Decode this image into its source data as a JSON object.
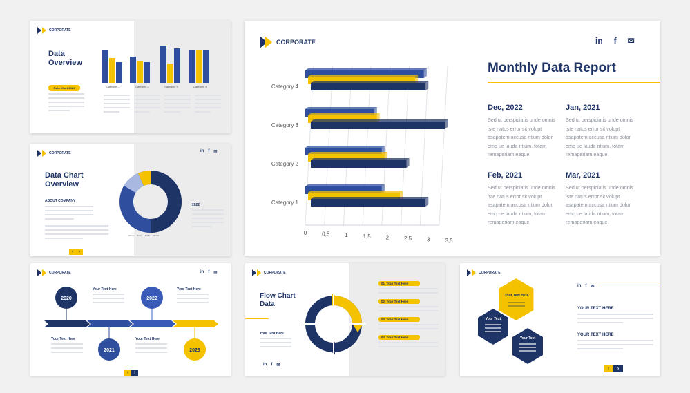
{
  "brand": "CORPORATE",
  "social": {
    "linkedin": "in",
    "facebook": "f",
    "mail": "✉"
  },
  "slide1": {
    "title": "Data Overview",
    "badge": "Data Chart 2021",
    "bar_labels": [
      "Category 1",
      "Category 2",
      "Category 3",
      "Category 4"
    ]
  },
  "slide2": {
    "title": "Data Chart Overview",
    "about": "ABOUT COMPANY",
    "year": "2022",
    "legend": [
      "Series",
      "Sales",
      "Profit",
      "Market"
    ]
  },
  "slide3": {
    "years": [
      "2020",
      "2021",
      "2022",
      "2023"
    ],
    "label": "Your Text Here"
  },
  "main": {
    "title": "Monthly Data Report",
    "chart_data": {
      "type": "bar",
      "orientation": "horizontal",
      "categories": [
        "Category 1",
        "Category 2",
        "Category 3",
        "Category 4"
      ],
      "series": [
        {
          "values": [
            2.0,
            2.0,
            1.8,
            3.1
          ],
          "color": "#2f4f9e"
        },
        {
          "values": [
            2.4,
            2.0,
            1.8,
            2.8
          ],
          "color": "#f5c200"
        },
        {
          "values": [
            3.0,
            2.5,
            3.5,
            3.0
          ],
          "color": "#1f3466"
        }
      ],
      "xlim": [
        0,
        3.5
      ],
      "xticks": [
        "0",
        "0,5",
        "1",
        "1,5",
        "2",
        "2,5",
        "3",
        "3,5"
      ]
    },
    "entries": [
      {
        "date": "Dec, 2022",
        "text": "Sed ut perspiciatis unde omnis iste natus error sit volupt asapatem accusa ntium dolor emq ue lauda ntium, totam remaperiam,eaque."
      },
      {
        "date": "Jan, 2021",
        "text": "Sed ut perspiciatis unde omnis iste natus error sit volupt asapatem accusa ntium dolor emq ue lauda ntium, totam remaperiam,eaque."
      },
      {
        "date": "Feb, 2021",
        "text": "Sed ut perspiciatis unde omnis iste natus error sit volupt asapatem accusa ntium dolor emq ue lauda ntium, totam remaperiam,eaque."
      },
      {
        "date": "Mar, 2021",
        "text": "Sed ut perspiciatis unde omnis iste natus error sit volupt asapatem accusa ntium dolor emq ue lauda ntium, totam remaperiam,eaque."
      }
    ]
  },
  "slide5": {
    "title": "Flow Chart Data",
    "label": "Your Text Here",
    "steps": [
      "01. Your Text Here",
      "02. Your Text Here",
      "03. Your Text Here",
      "04. Your Text Here"
    ]
  },
  "slide6": {
    "hex_top": "Your Text Here",
    "hex_left": "Your Text",
    "hex_right": "Your Text",
    "heading1": "YOUR TEXT HERE",
    "heading2": "YOUR TEXT HERE"
  },
  "colors": {
    "navy": "#1f3466",
    "blue": "#2f4f9e",
    "yellow": "#f5c200"
  }
}
